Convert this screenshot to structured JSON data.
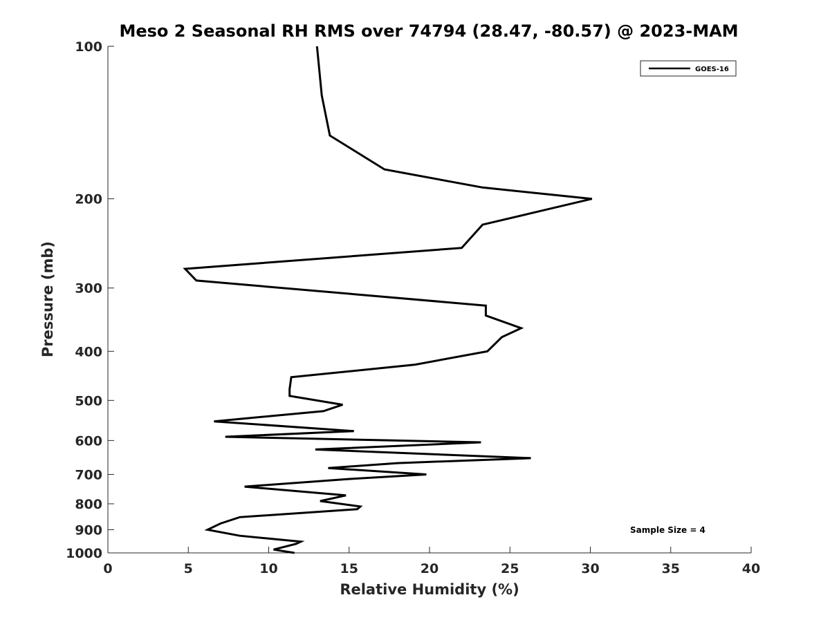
{
  "chart_data": {
    "type": "line",
    "title": "Meso 2 Seasonal RH RMS over 74794 (28.47, -80.57) @ 2023-MAM",
    "xlabel": "Relative Humidity (%)",
    "ylabel": "Pressure (mb)",
    "xlim": [
      0,
      40
    ],
    "ylim": [
      100,
      1000
    ],
    "y_scale": "log",
    "y_reversed": true,
    "grid": false,
    "legend_position": "top-right",
    "x_ticks": [
      "0",
      "5",
      "10",
      "15",
      "20",
      "25",
      "30",
      "35",
      "40"
    ],
    "y_ticks": [
      "100",
      "200",
      "300",
      "400",
      "500",
      "600",
      "700",
      "800",
      "900",
      "1000"
    ],
    "annotation": "Sample Size = 4",
    "series": [
      {
        "name": "GOES-16",
        "color": "#000000",
        "points": [
          [
            13.0,
            100
          ],
          [
            13.3,
            125
          ],
          [
            13.8,
            150
          ],
          [
            17.2,
            175
          ],
          [
            23.3,
            190
          ],
          [
            30.1,
            200
          ],
          [
            23.3,
            225
          ],
          [
            22.0,
            250
          ],
          [
            4.8,
            275
          ],
          [
            5.5,
            290
          ],
          [
            23.5,
            325
          ],
          [
            23.5,
            340
          ],
          [
            25.7,
            360
          ],
          [
            24.5,
            375
          ],
          [
            23.6,
            400
          ],
          [
            19.1,
            425
          ],
          [
            11.4,
            450
          ],
          [
            11.3,
            475
          ],
          [
            11.3,
            490
          ],
          [
            14.6,
            510
          ],
          [
            13.4,
            525
          ],
          [
            6.6,
            550
          ],
          [
            15.3,
            575
          ],
          [
            7.3,
            590
          ],
          [
            23.2,
            605
          ],
          [
            12.9,
            625
          ],
          [
            26.3,
            650
          ],
          [
            18.0,
            665
          ],
          [
            13.7,
            680
          ],
          [
            19.8,
            700
          ],
          [
            14.9,
            715
          ],
          [
            8.5,
            740
          ],
          [
            14.8,
            770
          ],
          [
            13.2,
            790
          ],
          [
            15.7,
            810
          ],
          [
            15.5,
            820
          ],
          [
            8.2,
            850
          ],
          [
            7.0,
            875
          ],
          [
            6.2,
            900
          ],
          [
            8.2,
            925
          ],
          [
            12.0,
            950
          ],
          [
            11.7,
            960
          ],
          [
            10.3,
            985
          ],
          [
            11.6,
            1000
          ]
        ]
      }
    ]
  }
}
